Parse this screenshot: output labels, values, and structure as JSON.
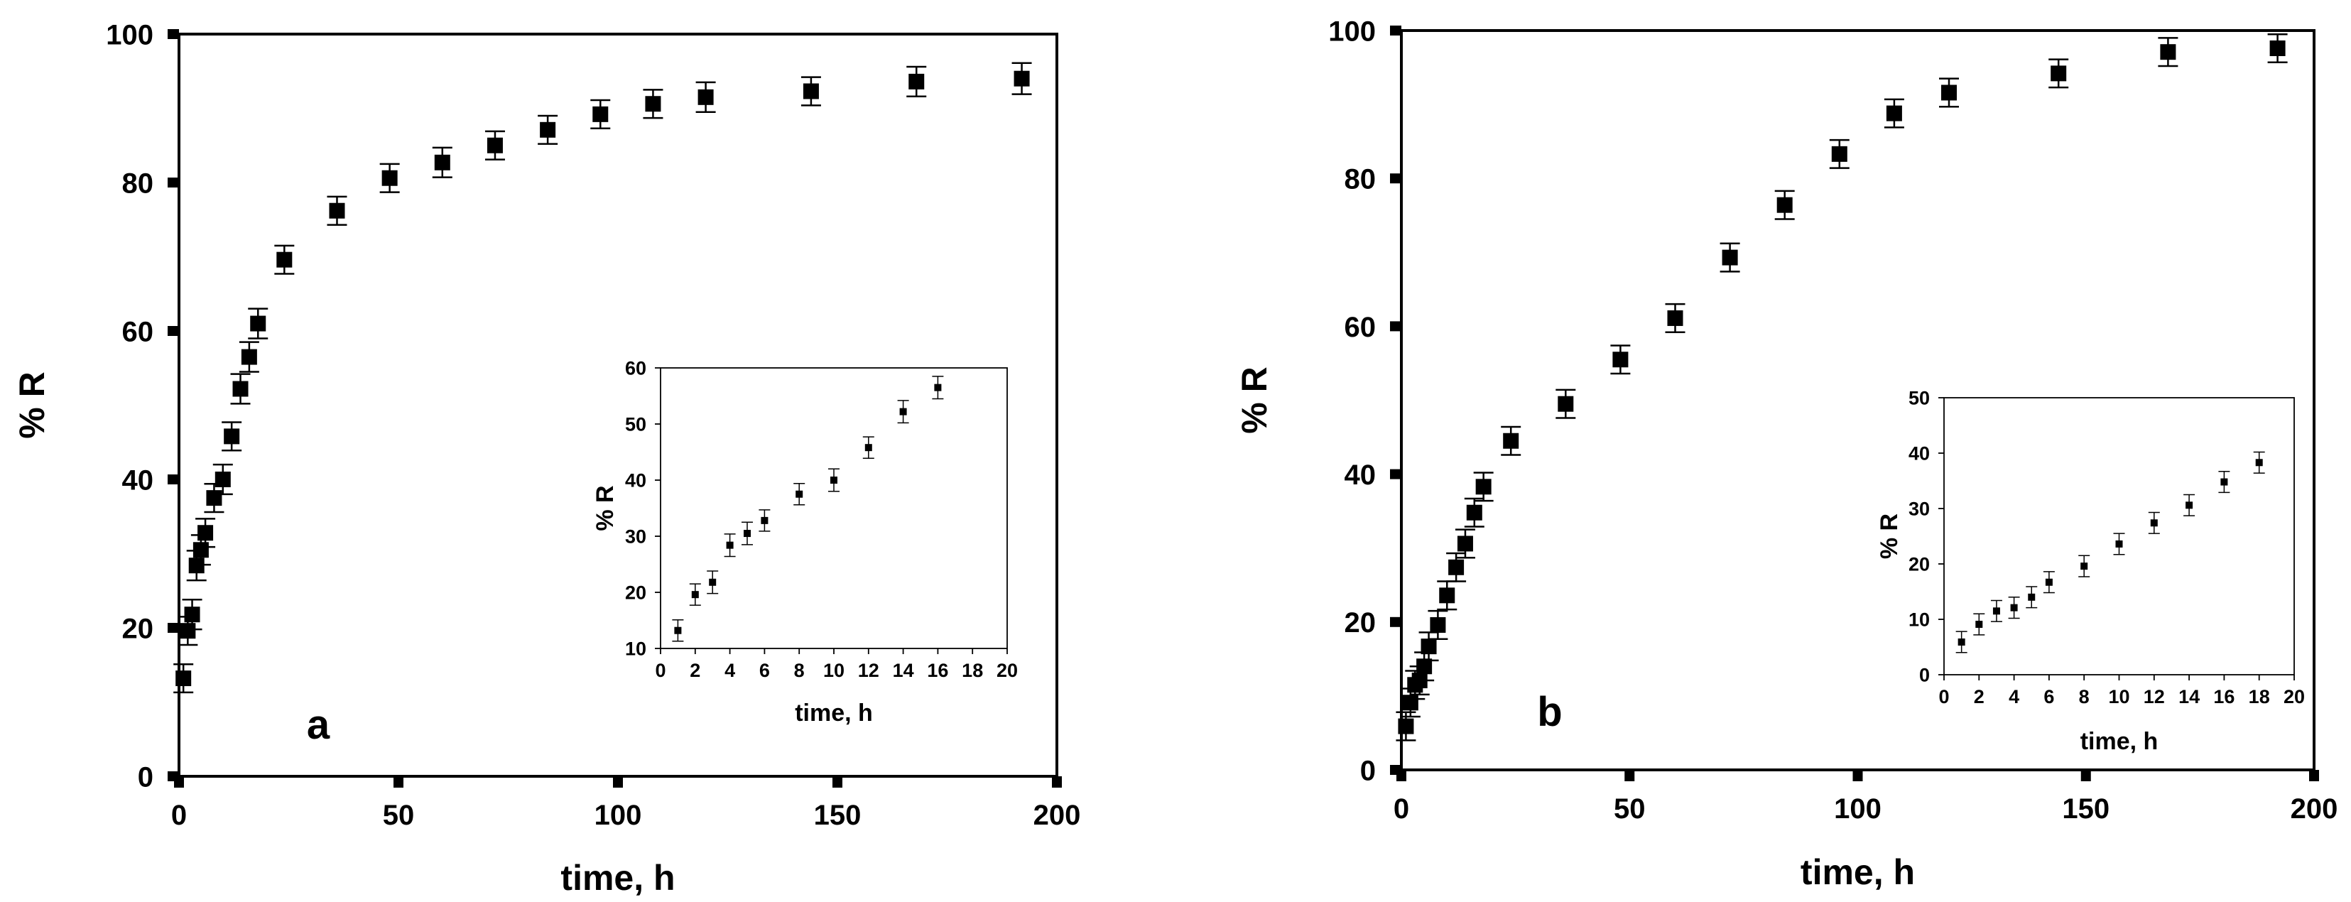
{
  "chart_data": [
    {
      "id": "main-a",
      "type": "scatter",
      "panel_label": "a",
      "xlabel": "time, h",
      "ylabel": "% R",
      "xlim": [
        0,
        200
      ],
      "ylim": [
        0,
        100
      ],
      "xticks": [
        0,
        50,
        100,
        150,
        200
      ],
      "yticks": [
        0,
        20,
        40,
        60,
        80,
        100
      ],
      "marker_color": "#000000",
      "points": [
        {
          "x": 1,
          "y": 13.2,
          "err": 1.9
        },
        {
          "x": 2,
          "y": 19.6,
          "err": 1.9
        },
        {
          "x": 3,
          "y": 21.8,
          "err": 2.0
        },
        {
          "x": 4,
          "y": 28.4,
          "err": 2.0
        },
        {
          "x": 5,
          "y": 30.5,
          "err": 2.0
        },
        {
          "x": 6,
          "y": 32.8,
          "err": 1.9
        },
        {
          "x": 8,
          "y": 37.5,
          "err": 1.9
        },
        {
          "x": 10,
          "y": 40.0,
          "err": 2.0
        },
        {
          "x": 12,
          "y": 45.8,
          "err": 1.9
        },
        {
          "x": 14,
          "y": 52.2,
          "err": 2.0
        },
        {
          "x": 16,
          "y": 56.5,
          "err": 2.0
        },
        {
          "x": 18,
          "y": 61.0,
          "err": 2.0
        },
        {
          "x": 24,
          "y": 69.6,
          "err": 1.9
        },
        {
          "x": 36,
          "y": 76.2,
          "err": 1.9
        },
        {
          "x": 48,
          "y": 80.6,
          "err": 1.9
        },
        {
          "x": 60,
          "y": 82.7,
          "err": 2.0
        },
        {
          "x": 72,
          "y": 85.0,
          "err": 1.9
        },
        {
          "x": 84,
          "y": 87.1,
          "err": 1.9
        },
        {
          "x": 96,
          "y": 89.2,
          "err": 1.9
        },
        {
          "x": 108,
          "y": 90.6,
          "err": 1.9
        },
        {
          "x": 120,
          "y": 91.5,
          "err": 2.0
        },
        {
          "x": 144,
          "y": 92.3,
          "err": 1.9
        },
        {
          "x": 168,
          "y": 93.6,
          "err": 2.0
        },
        {
          "x": 192,
          "y": 94.0,
          "err": 2.1
        }
      ]
    },
    {
      "id": "inset-a",
      "type": "scatter",
      "xlabel": "time, h",
      "ylabel": "% R",
      "xlim": [
        0,
        20
      ],
      "ylim": [
        10,
        60
      ],
      "xticks": [
        0,
        2,
        4,
        6,
        8,
        10,
        12,
        14,
        16,
        18,
        20
      ],
      "yticks": [
        10,
        20,
        30,
        40,
        50,
        60
      ],
      "marker_color": "#000000",
      "points": [
        {
          "x": 1,
          "y": 13.2,
          "err": 1.9
        },
        {
          "x": 2,
          "y": 19.6,
          "err": 1.9
        },
        {
          "x": 3,
          "y": 21.8,
          "err": 2.0
        },
        {
          "x": 4,
          "y": 28.4,
          "err": 2.0
        },
        {
          "x": 5,
          "y": 30.5,
          "err": 2.0
        },
        {
          "x": 6,
          "y": 32.8,
          "err": 1.9
        },
        {
          "x": 8,
          "y": 37.5,
          "err": 1.9
        },
        {
          "x": 10,
          "y": 40.0,
          "err": 2.0
        },
        {
          "x": 12,
          "y": 45.8,
          "err": 1.9
        },
        {
          "x": 14,
          "y": 52.2,
          "err": 2.0
        },
        {
          "x": 16,
          "y": 56.5,
          "err": 2.0
        }
      ]
    },
    {
      "id": "main-b",
      "type": "scatter",
      "panel_label": "b",
      "xlabel": "time, h",
      "ylabel": "% R",
      "xlim": [
        0,
        200
      ],
      "ylim": [
        0,
        100
      ],
      "xticks": [
        0,
        50,
        100,
        150,
        200
      ],
      "yticks": [
        0,
        20,
        40,
        60,
        80,
        100
      ],
      "marker_color": "#000000",
      "points": [
        {
          "x": 1,
          "y": 5.9,
          "err": 1.9
        },
        {
          "x": 2,
          "y": 9.1,
          "err": 1.9
        },
        {
          "x": 3,
          "y": 11.5,
          "err": 1.9
        },
        {
          "x": 4,
          "y": 12.1,
          "err": 1.9
        },
        {
          "x": 5,
          "y": 14.0,
          "err": 1.9
        },
        {
          "x": 6,
          "y": 16.7,
          "err": 1.9
        },
        {
          "x": 8,
          "y": 19.6,
          "err": 1.9
        },
        {
          "x": 10,
          "y": 23.6,
          "err": 1.9
        },
        {
          "x": 12,
          "y": 27.4,
          "err": 1.9
        },
        {
          "x": 14,
          "y": 30.6,
          "err": 1.9
        },
        {
          "x": 16,
          "y": 34.8,
          "err": 1.9
        },
        {
          "x": 18,
          "y": 38.3,
          "err": 1.9
        },
        {
          "x": 24,
          "y": 44.5,
          "err": 1.9
        },
        {
          "x": 36,
          "y": 49.5,
          "err": 1.9
        },
        {
          "x": 48,
          "y": 55.5,
          "err": 1.9
        },
        {
          "x": 60,
          "y": 61.1,
          "err": 1.9
        },
        {
          "x": 72,
          "y": 69.3,
          "err": 1.9
        },
        {
          "x": 84,
          "y": 76.4,
          "err": 1.9
        },
        {
          "x": 96,
          "y": 83.3,
          "err": 1.9
        },
        {
          "x": 108,
          "y": 88.8,
          "err": 1.9
        },
        {
          "x": 120,
          "y": 91.6,
          "err": 1.9
        },
        {
          "x": 144,
          "y": 94.2,
          "err": 1.9
        },
        {
          "x": 168,
          "y": 97.1,
          "err": 1.9
        },
        {
          "x": 192,
          "y": 97.6,
          "err": 1.9
        }
      ]
    },
    {
      "id": "inset-b",
      "type": "scatter",
      "xlabel": "time, h",
      "ylabel": "% R",
      "xlim": [
        0,
        20
      ],
      "ylim": [
        0,
        50
      ],
      "xticks": [
        0,
        2,
        4,
        6,
        8,
        10,
        12,
        14,
        16,
        18,
        20
      ],
      "yticks": [
        0,
        10,
        20,
        30,
        40,
        50
      ],
      "marker_color": "#000000",
      "points": [
        {
          "x": 1,
          "y": 5.9,
          "err": 1.9
        },
        {
          "x": 2,
          "y": 9.1,
          "err": 1.9
        },
        {
          "x": 3,
          "y": 11.5,
          "err": 1.9
        },
        {
          "x": 4,
          "y": 12.1,
          "err": 1.9
        },
        {
          "x": 5,
          "y": 14.0,
          "err": 1.9
        },
        {
          "x": 6,
          "y": 16.7,
          "err": 1.9
        },
        {
          "x": 8,
          "y": 19.6,
          "err": 1.9
        },
        {
          "x": 10,
          "y": 23.6,
          "err": 1.9
        },
        {
          "x": 12,
          "y": 27.4,
          "err": 1.9
        },
        {
          "x": 14,
          "y": 30.6,
          "err": 1.9
        },
        {
          "x": 16,
          "y": 34.8,
          "err": 1.9
        },
        {
          "x": 18,
          "y": 38.3,
          "err": 1.9
        }
      ]
    }
  ]
}
